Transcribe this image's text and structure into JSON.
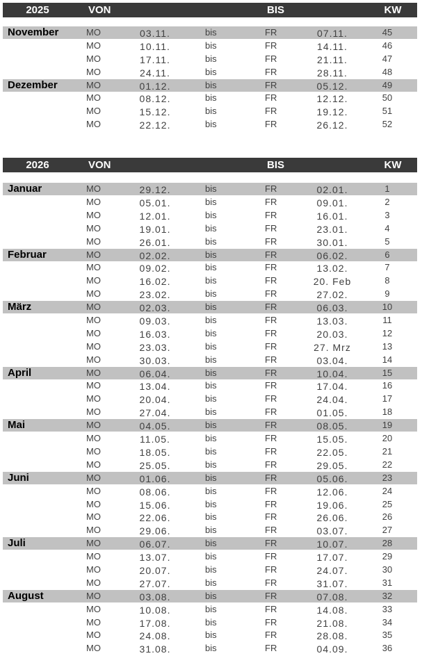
{
  "colors": {
    "page_bg": "#ffffff",
    "header_bg": "#3a3a3a",
    "header_text": "#ffffff",
    "month_row_bg": "#c1c1c1",
    "row_text": "#404040",
    "month_text": "#000000"
  },
  "sections": [
    {
      "year": "2025",
      "columns": {
        "von": "VON",
        "bis": "BIS",
        "kw": "KW"
      },
      "rows": [
        {
          "month": "November",
          "month_start": true,
          "from_day": "MO",
          "from_date": "03.11.",
          "separator": "bis",
          "to_day": "FR",
          "to_date": "07.11.",
          "kw": "45"
        },
        {
          "month": "",
          "month_start": false,
          "from_day": "MO",
          "from_date": "10.11.",
          "separator": "bis",
          "to_day": "FR",
          "to_date": "14.11.",
          "kw": "46"
        },
        {
          "month": "",
          "month_start": false,
          "from_day": "MO",
          "from_date": "17.11.",
          "separator": "bis",
          "to_day": "FR",
          "to_date": "21.11.",
          "kw": "47"
        },
        {
          "month": "",
          "month_start": false,
          "from_day": "MO",
          "from_date": "24.11.",
          "separator": "bis",
          "to_day": "FR",
          "to_date": "28.11.",
          "kw": "48"
        },
        {
          "month": "Dezember",
          "month_start": true,
          "from_day": "MO",
          "from_date": "01.12.",
          "separator": "bis",
          "to_day": "FR",
          "to_date": "05.12.",
          "kw": "49"
        },
        {
          "month": "",
          "month_start": false,
          "from_day": "MO",
          "from_date": "08.12.",
          "separator": "bis",
          "to_day": "FR",
          "to_date": "12.12.",
          "kw": "50"
        },
        {
          "month": "",
          "month_start": false,
          "from_day": "MO",
          "from_date": "15.12.",
          "separator": "bis",
          "to_day": "FR",
          "to_date": "19.12.",
          "kw": "51"
        },
        {
          "month": "",
          "month_start": false,
          "from_day": "MO",
          "from_date": "22.12.",
          "separator": "bis",
          "to_day": "FR",
          "to_date": "26.12.",
          "kw": "52"
        }
      ]
    },
    {
      "year": "2026",
      "columns": {
        "von": "VON",
        "bis": "BIS",
        "kw": "KW"
      },
      "rows": [
        {
          "month": "Januar",
          "month_start": true,
          "from_day": "MO",
          "from_date": "29.12.",
          "separator": "bis",
          "to_day": "FR",
          "to_date": "02.01.",
          "kw": "1"
        },
        {
          "month": "",
          "month_start": false,
          "from_day": "MO",
          "from_date": "05.01.",
          "separator": "bis",
          "to_day": "FR",
          "to_date": "09.01.",
          "kw": "2"
        },
        {
          "month": "",
          "month_start": false,
          "from_day": "MO",
          "from_date": "12.01.",
          "separator": "bis",
          "to_day": "FR",
          "to_date": "16.01.",
          "kw": "3"
        },
        {
          "month": "",
          "month_start": false,
          "from_day": "MO",
          "from_date": "19.01.",
          "separator": "bis",
          "to_day": "FR",
          "to_date": "23.01.",
          "kw": "4"
        },
        {
          "month": "",
          "month_start": false,
          "from_day": "MO",
          "from_date": "26.01.",
          "separator": "bis",
          "to_day": "FR",
          "to_date": "30.01.",
          "kw": "5"
        },
        {
          "month": "Februar",
          "month_start": true,
          "from_day": "MO",
          "from_date": "02.02.",
          "separator": "bis",
          "to_day": "FR",
          "to_date": "06.02.",
          "kw": "6"
        },
        {
          "month": "",
          "month_start": false,
          "from_day": "MO",
          "from_date": "09.02.",
          "separator": "bis",
          "to_day": "FR",
          "to_date": "13.02.",
          "kw": "7"
        },
        {
          "month": "",
          "month_start": false,
          "from_day": "MO",
          "from_date": "16.02.",
          "separator": "bis",
          "to_day": "FR",
          "to_date": "20. Feb",
          "kw": "8"
        },
        {
          "month": "",
          "month_start": false,
          "from_day": "MO",
          "from_date": "23.02.",
          "separator": "bis",
          "to_day": "FR",
          "to_date": "27.02.",
          "kw": "9"
        },
        {
          "month": "März",
          "month_start": true,
          "from_day": "MO",
          "from_date": "02.03.",
          "separator": "bis",
          "to_day": "FR",
          "to_date": "06.03.",
          "kw": "10"
        },
        {
          "month": "",
          "month_start": false,
          "from_day": "MO",
          "from_date": "09.03.",
          "separator": "bis",
          "to_day": "FR",
          "to_date": "13.03.",
          "kw": "11"
        },
        {
          "month": "",
          "month_start": false,
          "from_day": "MO",
          "from_date": "16.03.",
          "separator": "bis",
          "to_day": "FR",
          "to_date": "20.03.",
          "kw": "12"
        },
        {
          "month": "",
          "month_start": false,
          "from_day": "MO",
          "from_date": "23.03.",
          "separator": "bis",
          "to_day": "FR",
          "to_date": "27. Mrz",
          "kw": "13"
        },
        {
          "month": "",
          "month_start": false,
          "from_day": "MO",
          "from_date": "30.03.",
          "separator": "bis",
          "to_day": "FR",
          "to_date": "03.04.",
          "kw": "14"
        },
        {
          "month": "April",
          "month_start": true,
          "from_day": "MO",
          "from_date": "06.04.",
          "separator": "bis",
          "to_day": "FR",
          "to_date": "10.04.",
          "kw": "15"
        },
        {
          "month": "",
          "month_start": false,
          "from_day": "MO",
          "from_date": "13.04.",
          "separator": "bis",
          "to_day": "FR",
          "to_date": "17.04.",
          "kw": "16"
        },
        {
          "month": "",
          "month_start": false,
          "from_day": "MO",
          "from_date": "20.04.",
          "separator": "bis",
          "to_day": "FR",
          "to_date": "24.04.",
          "kw": "17"
        },
        {
          "month": "",
          "month_start": false,
          "from_day": "MO",
          "from_date": "27.04.",
          "separator": "bis",
          "to_day": "FR",
          "to_date": "01.05.",
          "kw": "18"
        },
        {
          "month": "Mai",
          "month_start": true,
          "from_day": "MO",
          "from_date": "04.05.",
          "separator": "bis",
          "to_day": "FR",
          "to_date": "08.05.",
          "kw": "19"
        },
        {
          "month": "",
          "month_start": false,
          "from_day": "MO",
          "from_date": "11.05.",
          "separator": "bis",
          "to_day": "FR",
          "to_date": "15.05.",
          "kw": "20"
        },
        {
          "month": "",
          "month_start": false,
          "from_day": "MO",
          "from_date": "18.05.",
          "separator": "bis",
          "to_day": "FR",
          "to_date": "22.05.",
          "kw": "21"
        },
        {
          "month": "",
          "month_start": false,
          "from_day": "MO",
          "from_date": "25.05.",
          "separator": "bis",
          "to_day": "FR",
          "to_date": "29.05.",
          "kw": "22"
        },
        {
          "month": "Juni",
          "month_start": true,
          "from_day": "MO",
          "from_date": "01.06.",
          "separator": "bis",
          "to_day": "FR",
          "to_date": "05.06.",
          "kw": "23"
        },
        {
          "month": "",
          "month_start": false,
          "from_day": "MO",
          "from_date": "08.06.",
          "separator": "bis",
          "to_day": "FR",
          "to_date": "12.06.",
          "kw": "24"
        },
        {
          "month": "",
          "month_start": false,
          "from_day": "MO",
          "from_date": "15.06.",
          "separator": "bis",
          "to_day": "FR",
          "to_date": "19.06.",
          "kw": "25"
        },
        {
          "month": "",
          "month_start": false,
          "from_day": "MO",
          "from_date": "22.06.",
          "separator": "bis",
          "to_day": "FR",
          "to_date": "26.06.",
          "kw": "26"
        },
        {
          "month": "",
          "month_start": false,
          "from_day": "MO",
          "from_date": "29.06.",
          "separator": "bis",
          "to_day": "FR",
          "to_date": "03.07.",
          "kw": "27"
        },
        {
          "month": "Juli",
          "month_start": true,
          "from_day": "MO",
          "from_date": "06.07.",
          "separator": "bis",
          "to_day": "FR",
          "to_date": "10.07.",
          "kw": "28"
        },
        {
          "month": "",
          "month_start": false,
          "from_day": "MO",
          "from_date": "13.07.",
          "separator": "bis",
          "to_day": "FR",
          "to_date": "17.07.",
          "kw": "29"
        },
        {
          "month": "",
          "month_start": false,
          "from_day": "MO",
          "from_date": "20.07.",
          "separator": "bis",
          "to_day": "FR",
          "to_date": "24.07.",
          "kw": "30"
        },
        {
          "month": "",
          "month_start": false,
          "from_day": "MO",
          "from_date": "27.07.",
          "separator": "bis",
          "to_day": "FR",
          "to_date": "31.07.",
          "kw": "31"
        },
        {
          "month": "August",
          "month_start": true,
          "from_day": "MO",
          "from_date": "03.08.",
          "separator": "bis",
          "to_day": "FR",
          "to_date": "07.08.",
          "kw": "32"
        },
        {
          "month": "",
          "month_start": false,
          "from_day": "MO",
          "from_date": "10.08.",
          "separator": "bis",
          "to_day": "FR",
          "to_date": "14.08.",
          "kw": "33"
        },
        {
          "month": "",
          "month_start": false,
          "from_day": "MO",
          "from_date": "17.08.",
          "separator": "bis",
          "to_day": "FR",
          "to_date": "21.08.",
          "kw": "34"
        },
        {
          "month": "",
          "month_start": false,
          "from_day": "MO",
          "from_date": "24.08.",
          "separator": "bis",
          "to_day": "FR",
          "to_date": "28.08.",
          "kw": "35"
        },
        {
          "month": "",
          "month_start": false,
          "from_day": "MO",
          "from_date": "31.08.",
          "separator": "bis",
          "to_day": "FR",
          "to_date": "04.09.",
          "kw": "36"
        }
      ]
    }
  ]
}
